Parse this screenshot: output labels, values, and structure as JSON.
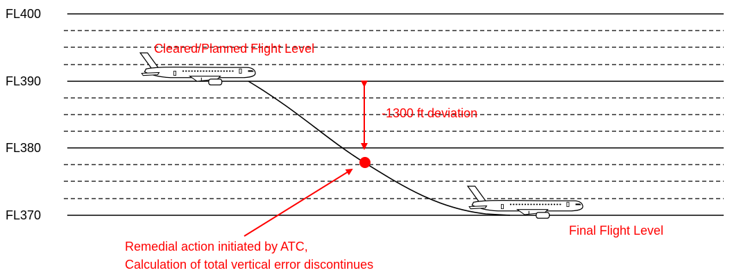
{
  "levels": [
    {
      "label": "FL400"
    },
    {
      "label": "FL390"
    },
    {
      "label": "FL380"
    },
    {
      "label": "FL370"
    }
  ],
  "annotations": {
    "cleared_level": "Cleared/Planned Flight Level",
    "deviation": "-1300 ft deviation",
    "final_level": "Final Flight Level",
    "remedial_line1": "Remedial action initiated by ATC,",
    "remedial_line2": "Calculation of total vertical error discontinues"
  },
  "colors": {
    "annotation": "#ff0000",
    "lines": "#000000"
  },
  "icons": {
    "aircraft": "airliner-side-view-icon",
    "marker": "red-dot-marker"
  }
}
